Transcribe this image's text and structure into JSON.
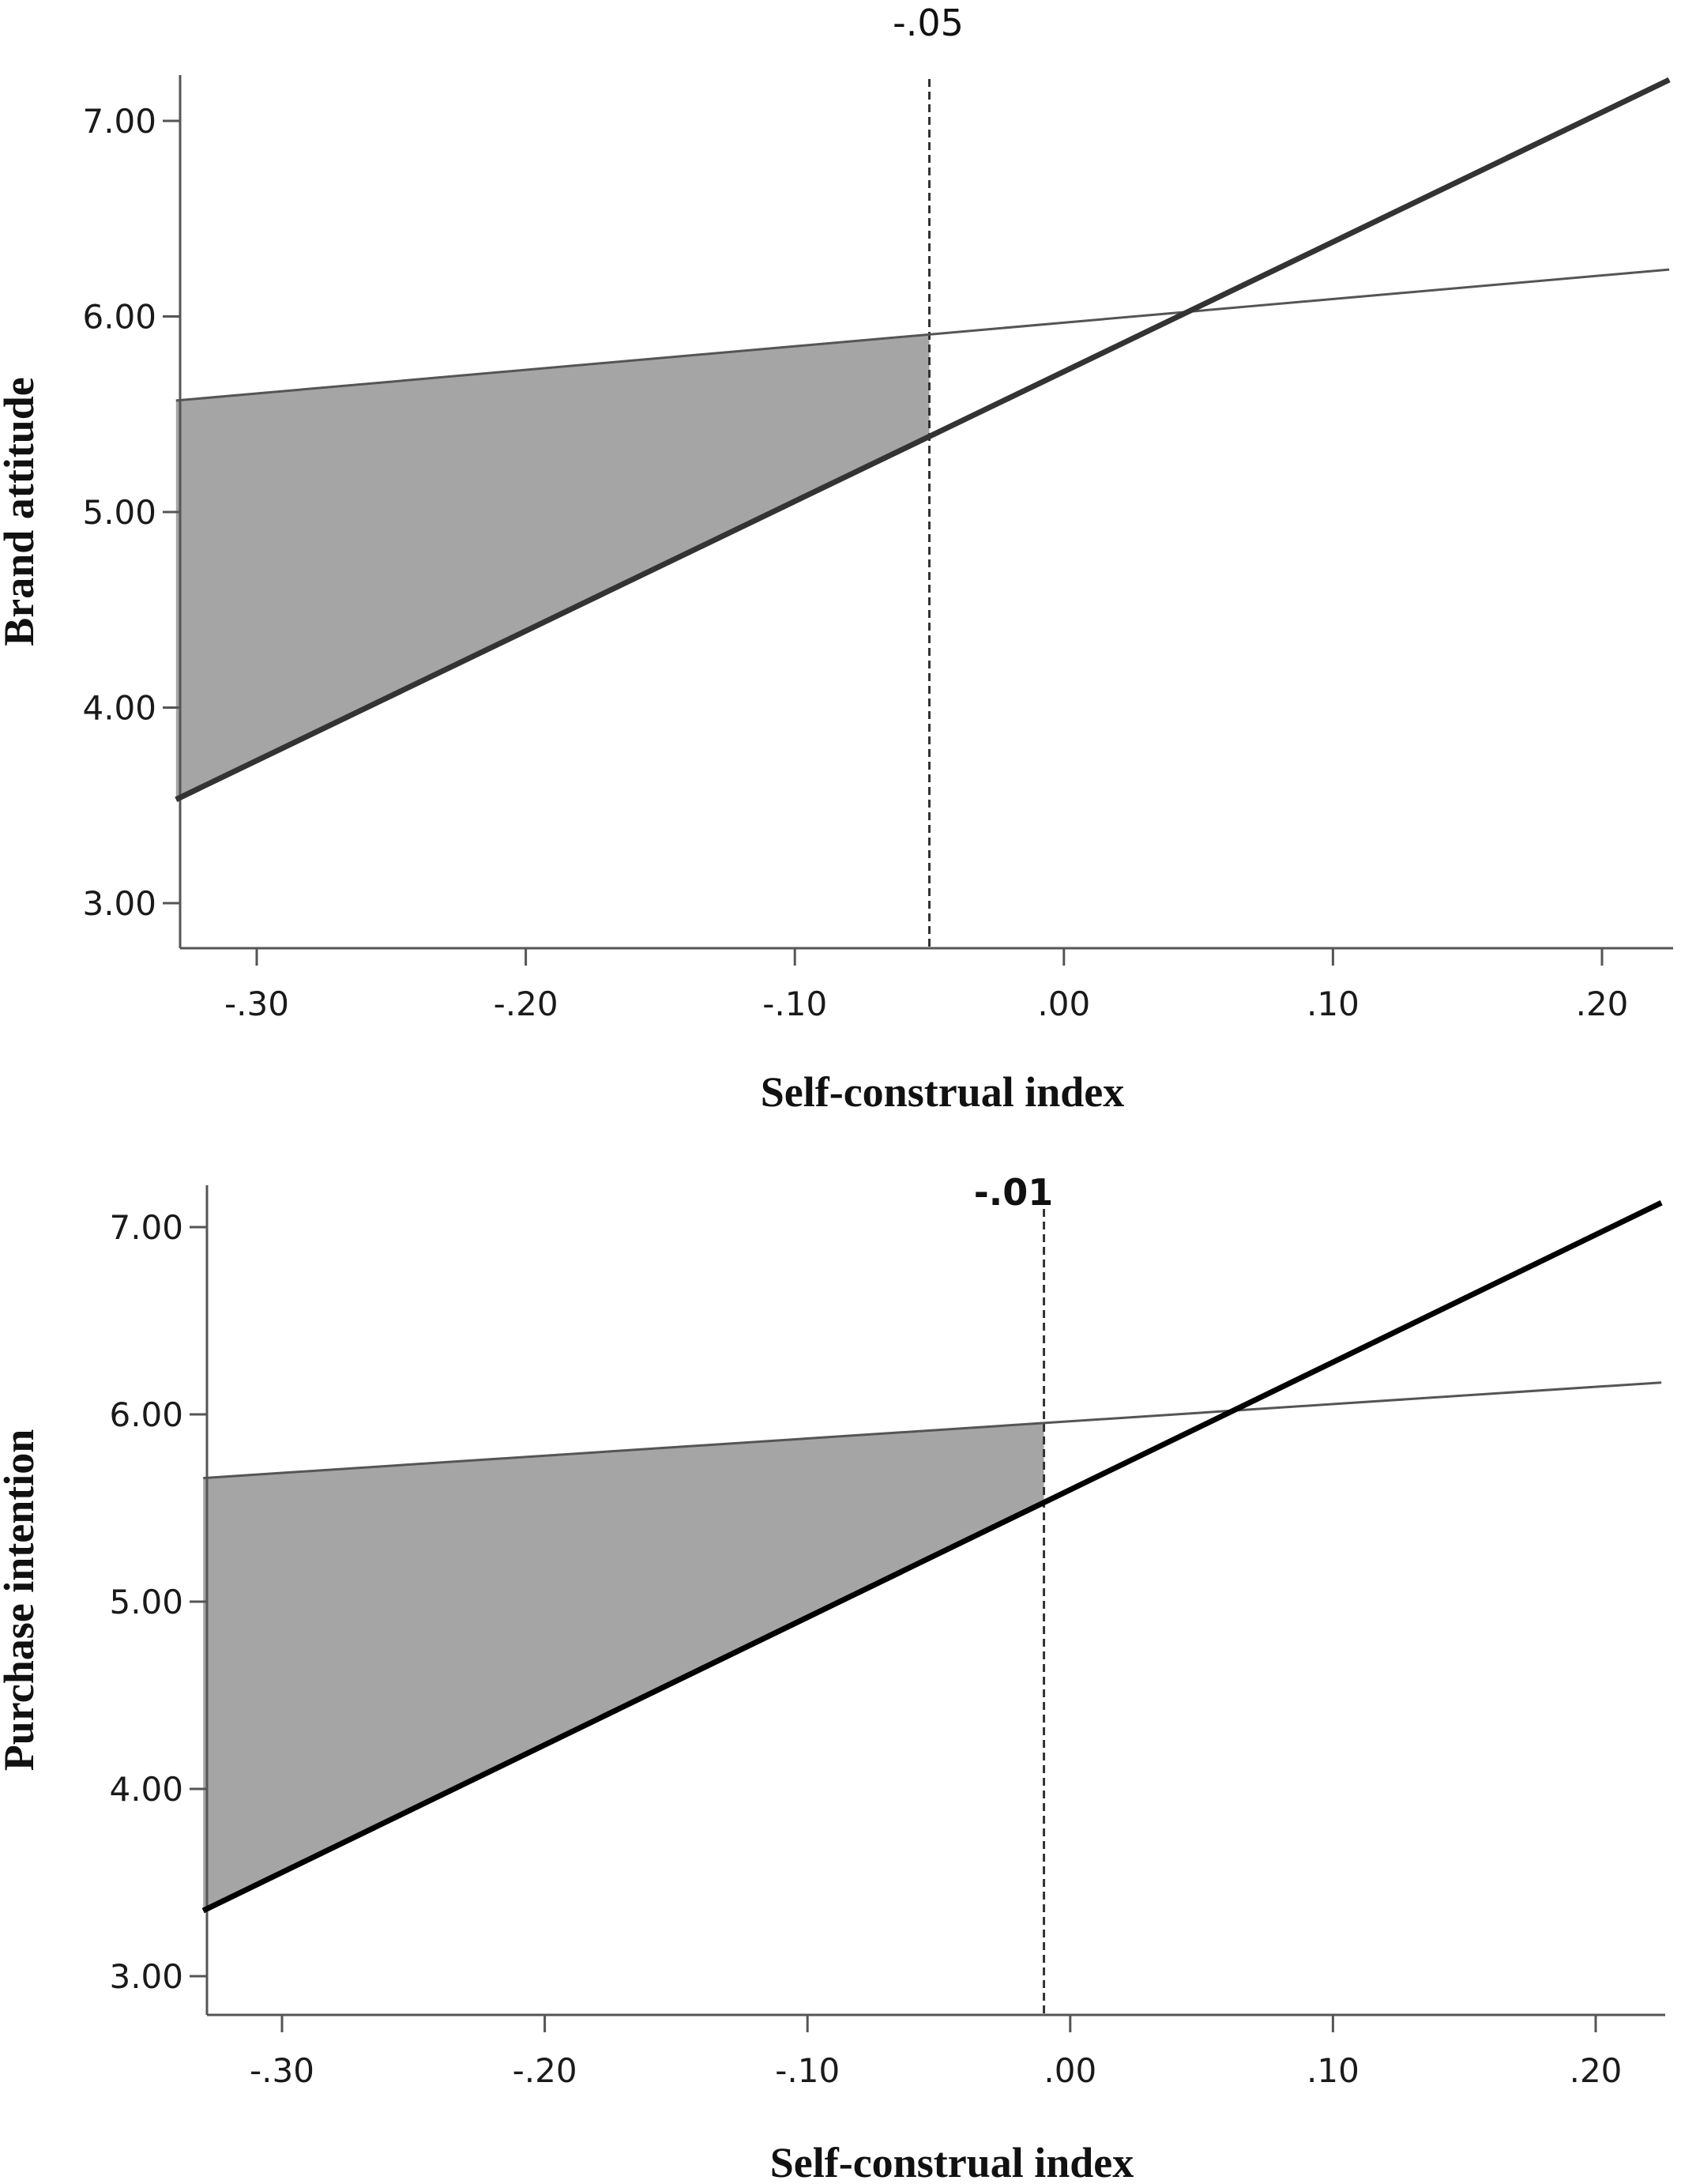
{
  "chart_data": [
    {
      "type": "line",
      "xlabel": "Self-construal index",
      "ylabel": "Brand attitude",
      "xlim": [
        -0.33,
        0.225
      ],
      "ylim": [
        2.74,
        7.2
      ],
      "x_ticks": [
        -0.3,
        -0.2,
        -0.1,
        0.0,
        0.1,
        0.2
      ],
      "x_tick_labels": [
        "-.30",
        "-.20",
        "-.10",
        ".00",
        ".10",
        ".20"
      ],
      "y_ticks": [
        3,
        4,
        5,
        6,
        7
      ],
      "y_tick_labels": [
        "3.00",
        "4.00",
        "5.00",
        "6.00",
        "7.00"
      ],
      "critical_value": -0.05,
      "critical_label": "-.05",
      "shaded_region": [
        -0.33,
        -0.05
      ],
      "shade_color": "#a5a5a5",
      "series": [
        {
          "x": [
            -0.33,
            0.225
          ],
          "y": [
            3.53,
            7.21
          ],
          "color": "#333333",
          "style": "thick"
        },
        {
          "x": [
            -0.33,
            0.225
          ],
          "y": [
            5.57,
            6.24
          ],
          "color": "#555555",
          "style": "thin"
        }
      ]
    },
    {
      "type": "line",
      "xlabel": "Self-construal index",
      "ylabel": "Purchase intention",
      "xlim": [
        -0.33,
        0.225
      ],
      "ylim": [
        2.74,
        7.2
      ],
      "x_ticks": [
        -0.3,
        -0.2,
        -0.1,
        0.0,
        0.1,
        0.2
      ],
      "x_tick_labels": [
        "-.30",
        "-.20",
        "-.10",
        ".00",
        ".10",
        ".20"
      ],
      "y_ticks": [
        3,
        4,
        5,
        6,
        7
      ],
      "y_tick_labels": [
        "3.00",
        "4.00",
        "5.00",
        "6.00",
        "7.00"
      ],
      "critical_value": -0.01,
      "critical_label": "-.01",
      "shaded_region": [
        -0.33,
        -0.01
      ],
      "shade_color": "#a5a5a5",
      "series": [
        {
          "x": [
            -0.33,
            0.225
          ],
          "y": [
            3.35,
            7.13
          ],
          "color": "#000000",
          "style": "thick"
        },
        {
          "x": [
            -0.33,
            0.225
          ],
          "y": [
            5.66,
            6.17
          ],
          "color": "#555555",
          "style": "thin"
        }
      ]
    }
  ]
}
